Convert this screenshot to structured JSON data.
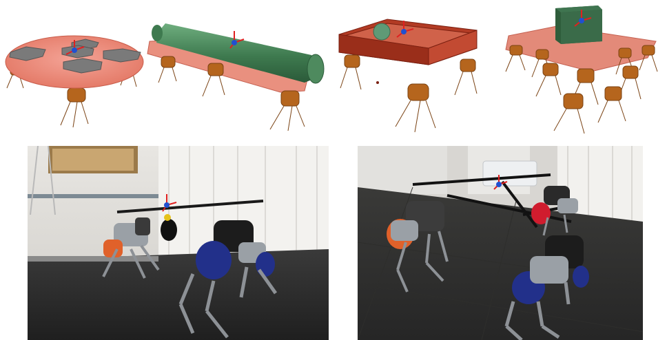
{
  "figure": {
    "top_row": [
      {
        "scene": "four-robots-carrying-round-platform-with-blocks"
      },
      {
        "scene": "three-robots-carrying-cylinder-on-plate"
      },
      {
        "scene": "three-robots-carrying-box-with-ball"
      },
      {
        "scene": "many-robots-carrying-plate-with-cube"
      }
    ],
    "bottom_row": [
      {
        "scene": "two-real-quadrupeds-carrying-bar"
      },
      {
        "scene": "three-real-quadrupeds-carrying-frame"
      }
    ]
  }
}
